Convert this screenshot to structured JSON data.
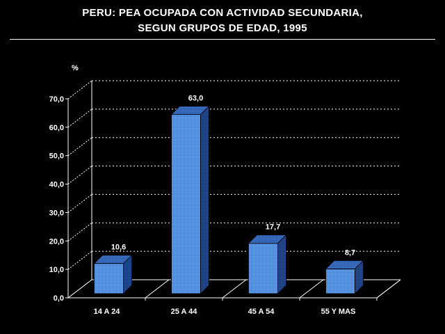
{
  "chart_data": {
    "type": "bar",
    "title": "PERU: PEA OCUPADA CON ACTIVIDAD SECUNDARIA,",
    "subtitle": "SEGUN GRUPOS DE EDAD, 1995",
    "ylabel": "%",
    "xlabel": "",
    "categories": [
      "14 A 24",
      "25 A 44",
      "45 A 54",
      "55 Y MAS"
    ],
    "values": [
      10.6,
      63.0,
      17.7,
      8.7
    ],
    "value_labels": [
      "10,6",
      "63,0",
      "17,7",
      "8,7"
    ],
    "ylim": [
      0,
      70
    ],
    "yticks": [
      "0,0",
      "10,0",
      "20,0",
      "30,0",
      "40,0",
      "50,0",
      "60,0",
      "70,0"
    ],
    "grid": true,
    "three_d": true,
    "colors": {
      "bar_front": "#4f8fe3",
      "bar_top": "#2c5aa8",
      "bar_side": "#1c3c78",
      "background": "#000000",
      "axis": "#ffffff"
    }
  }
}
